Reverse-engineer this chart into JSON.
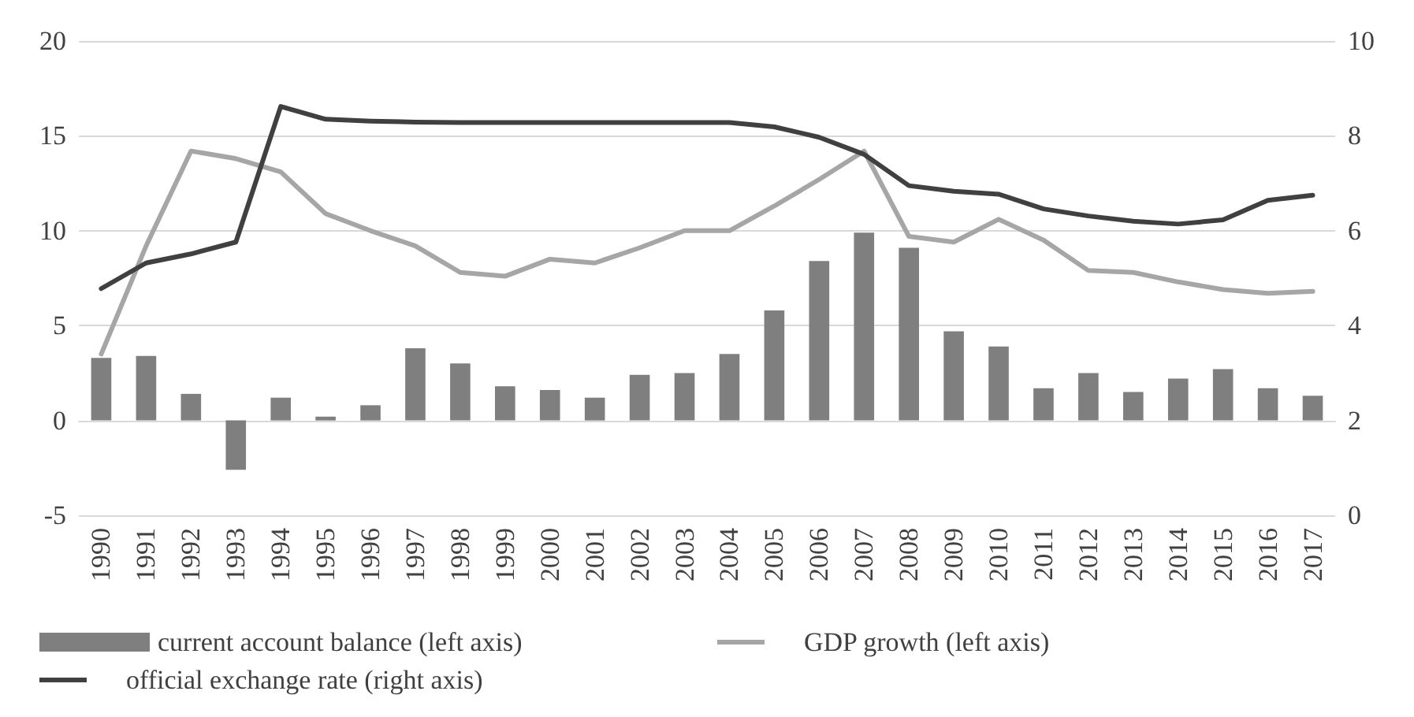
{
  "chart_data": {
    "type": "bar",
    "categories": [
      "1990",
      "1991",
      "1992",
      "1993",
      "1994",
      "1995",
      "1996",
      "1997",
      "1998",
      "1999",
      "2000",
      "2001",
      "2002",
      "2003",
      "2004",
      "2005",
      "2006",
      "2007",
      "2008",
      "2009",
      "2010",
      "2011",
      "2012",
      "2013",
      "2014",
      "2015",
      "2016",
      "2017"
    ],
    "series": [
      {
        "name": "current account balance (left axis)",
        "color": "#7f7f7f",
        "values": [
          3.3,
          3.4,
          1.4,
          -2.6,
          1.2,
          0.2,
          0.8,
          3.8,
          3.0,
          1.8,
          1.6,
          1.2,
          2.4,
          2.5,
          3.5,
          5.8,
          8.4,
          9.9,
          9.1,
          4.7,
          3.9,
          1.7,
          2.5,
          1.5,
          2.2,
          2.7,
          1.7,
          1.3
        ]
      },
      {
        "name": "GDP growth (left axis)",
        "type": "line",
        "color": "#a6a6a6",
        "values": [
          3.5,
          9.2,
          14.2,
          13.8,
          13.1,
          10.9,
          10.0,
          9.2,
          7.8,
          7.6,
          8.5,
          8.3,
          9.1,
          10.0,
          10.0,
          11.3,
          12.7,
          14.2,
          9.7,
          9.4,
          10.6,
          9.5,
          7.9,
          7.8,
          7.3,
          6.9,
          6.7,
          6.8
        ]
      },
      {
        "name": "official exchange rate (right axis)",
        "type": "line",
        "axis": "y2",
        "color": "#404040",
        "values": [
          4.78,
          5.32,
          5.51,
          5.76,
          8.62,
          8.35,
          8.31,
          8.29,
          8.28,
          8.28,
          8.28,
          8.28,
          8.28,
          8.28,
          8.28,
          8.19,
          7.97,
          7.61,
          6.95,
          6.83,
          6.77,
          6.46,
          6.31,
          6.2,
          6.14,
          6.23,
          6.64,
          6.75
        ]
      }
    ],
    "ylim": [
      -5,
      20
    ],
    "yticks": [
      -5,
      0,
      5,
      10,
      15,
      20
    ],
    "y2lim": [
      0,
      10
    ],
    "y2ticks": [
      0,
      2,
      4,
      6,
      8,
      10
    ],
    "grid": "y",
    "legend": "bottom",
    "marker": "none",
    "line_style": "solid"
  }
}
